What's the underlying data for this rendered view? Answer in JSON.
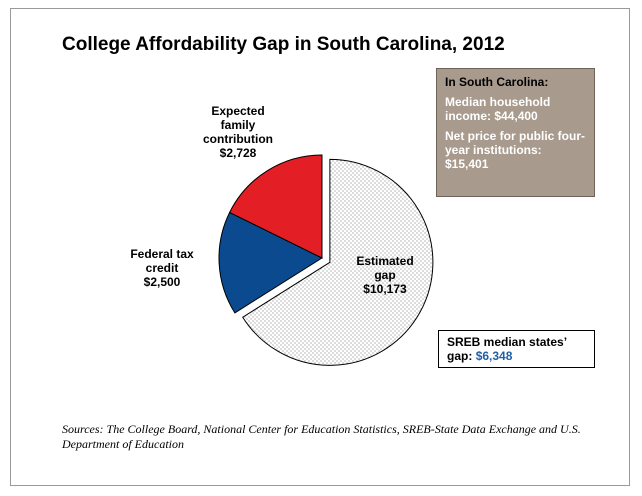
{
  "chart_data": {
    "type": "pie",
    "title": "College Affordability Gap in South Carolina, 2012",
    "slices": [
      {
        "label_lines": [
          "Estimated",
          "gap",
          "$10,173"
        ],
        "value": 10173,
        "color": "#ffffff",
        "pattern": "dots",
        "exploded": true
      },
      {
        "label_lines": [
          "Federal tax",
          "credit",
          "$2,500"
        ],
        "value": 2500,
        "color": "#0b4a8f",
        "pattern": "none",
        "exploded": false
      },
      {
        "label_lines": [
          "Expected",
          "family",
          "contribution",
          "$2,728"
        ],
        "value": 2728,
        "color": "#e31e24",
        "pattern": "none",
        "exploded": false
      }
    ]
  },
  "info_box": {
    "heading": "In South Carolina:",
    "income_line": "Median household income: $44,400",
    "price_line": "Net price for public four-year institutions: $15,401",
    "background": "#a89a8c"
  },
  "sreb_box": {
    "label": "SREB median states’ gap:",
    "value": "$6,348",
    "value_color": "#1f5fa6"
  },
  "sources": "Sources: The College Board, National Center for Education Statistics, SREB-State Data Exchange and U.S. Department of Education"
}
